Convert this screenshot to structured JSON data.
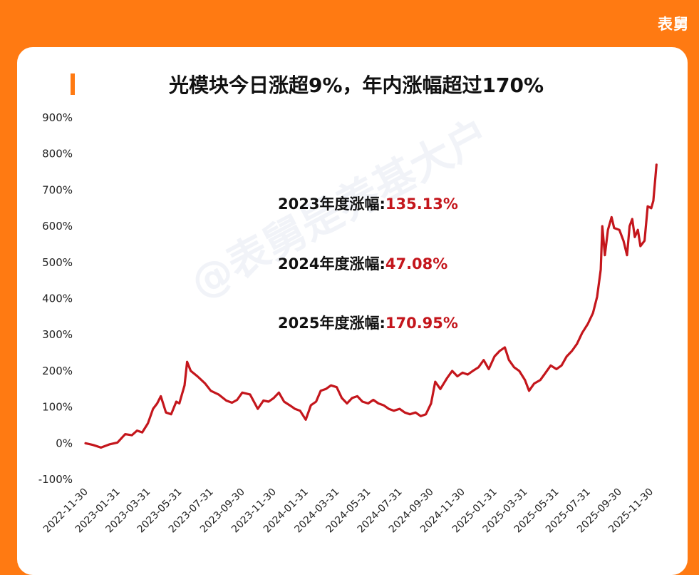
{
  "brand": "表舅",
  "watermark": "@表舅是养基大户",
  "colors": {
    "background": "#ff7a12",
    "line": "#c4161c",
    "value_text": "#c4161c"
  },
  "annotations": [
    {
      "label": "2023年度涨幅:",
      "value": "135.13%"
    },
    {
      "label": "2024年度涨幅:",
      "value": "47.08%"
    },
    {
      "label": "2025年度涨幅:",
      "value": "170.95%"
    }
  ],
  "chart_data": {
    "type": "line",
    "title": "光模块今日涨超9%，年内涨幅超过170%",
    "xlabel": "",
    "ylabel": "",
    "ylim": [
      -100,
      900
    ],
    "yticks": [
      -100,
      0,
      100,
      200,
      300,
      400,
      500,
      600,
      700,
      800,
      900
    ],
    "ytick_labels": [
      "-100%",
      "0%",
      "100%",
      "200%",
      "300%",
      "400%",
      "500%",
      "600%",
      "700%",
      "800%",
      "900%"
    ],
    "xlim": [
      "2022-11-30",
      "2025-12-12"
    ],
    "xticks": [
      "2022-11-30",
      "2023-01-31",
      "2023-03-31",
      "2023-05-31",
      "2023-07-31",
      "2023-09-30",
      "2023-11-30",
      "2024-01-31",
      "2024-03-31",
      "2024-05-31",
      "2024-07-31",
      "2024-09-30",
      "2024-11-30",
      "2025-01-31",
      "2025-03-31",
      "2025-05-31",
      "2025-07-31",
      "2025-09-30",
      "2025-11-30"
    ],
    "grid": false,
    "legend": "none",
    "series": [
      {
        "name": "",
        "values": [
          [
            "2022-11-30",
            0
          ],
          [
            "2022-12-15",
            -5
          ],
          [
            "2022-12-30",
            -12
          ],
          [
            "2023-01-16",
            -3
          ],
          [
            "2023-01-31",
            2
          ],
          [
            "2023-02-15",
            25
          ],
          [
            "2023-02-28",
            22
          ],
          [
            "2023-03-10",
            35
          ],
          [
            "2023-03-20",
            30
          ],
          [
            "2023-03-31",
            55
          ],
          [
            "2023-04-10",
            95
          ],
          [
            "2023-04-18",
            110
          ],
          [
            "2023-04-25",
            130
          ],
          [
            "2023-05-05",
            85
          ],
          [
            "2023-05-15",
            80
          ],
          [
            "2023-05-25",
            115
          ],
          [
            "2023-05-31",
            110
          ],
          [
            "2023-06-10",
            160
          ],
          [
            "2023-06-15",
            225
          ],
          [
            "2023-06-22",
            200
          ],
          [
            "2023-07-05",
            185
          ],
          [
            "2023-07-20",
            165
          ],
          [
            "2023-07-31",
            145
          ],
          [
            "2023-08-15",
            135
          ],
          [
            "2023-08-30",
            118
          ],
          [
            "2023-09-10",
            112
          ],
          [
            "2023-09-20",
            120
          ],
          [
            "2023-09-30",
            140
          ],
          [
            "2023-10-15",
            135
          ],
          [
            "2023-10-30",
            95
          ],
          [
            "2023-11-10",
            118
          ],
          [
            "2023-11-20",
            115
          ],
          [
            "2023-11-30",
            125
          ],
          [
            "2023-12-10",
            140
          ],
          [
            "2023-12-20",
            115
          ],
          [
            "2023-12-31",
            105
          ],
          [
            "2024-01-10",
            95
          ],
          [
            "2024-01-20",
            90
          ],
          [
            "2024-01-31",
            65
          ],
          [
            "2024-02-10",
            105
          ],
          [
            "2024-02-20",
            115
          ],
          [
            "2024-02-29",
            145
          ],
          [
            "2024-03-10",
            150
          ],
          [
            "2024-03-20",
            160
          ],
          [
            "2024-03-31",
            155
          ],
          [
            "2024-04-10",
            125
          ],
          [
            "2024-04-20",
            110
          ],
          [
            "2024-04-30",
            125
          ],
          [
            "2024-05-10",
            130
          ],
          [
            "2024-05-20",
            115
          ],
          [
            "2024-05-31",
            110
          ],
          [
            "2024-06-10",
            120
          ],
          [
            "2024-06-20",
            110
          ],
          [
            "2024-06-30",
            105
          ],
          [
            "2024-07-10",
            95
          ],
          [
            "2024-07-20",
            90
          ],
          [
            "2024-07-31",
            95
          ],
          [
            "2024-08-10",
            85
          ],
          [
            "2024-08-20",
            80
          ],
          [
            "2024-08-31",
            85
          ],
          [
            "2024-09-10",
            75
          ],
          [
            "2024-09-20",
            80
          ],
          [
            "2024-09-30",
            110
          ],
          [
            "2024-10-08",
            170
          ],
          [
            "2024-10-18",
            150
          ],
          [
            "2024-10-31",
            180
          ],
          [
            "2024-11-10",
            200
          ],
          [
            "2024-11-20",
            185
          ],
          [
            "2024-11-30",
            195
          ],
          [
            "2024-12-10",
            190
          ],
          [
            "2024-12-20",
            200
          ],
          [
            "2024-12-31",
            210
          ],
          [
            "2025-01-10",
            230
          ],
          [
            "2025-01-20",
            205
          ],
          [
            "2025-01-31",
            240
          ],
          [
            "2025-02-10",
            255
          ],
          [
            "2025-02-20",
            265
          ],
          [
            "2025-02-28",
            230
          ],
          [
            "2025-03-10",
            210
          ],
          [
            "2025-03-20",
            200
          ],
          [
            "2025-03-31",
            175
          ],
          [
            "2025-04-08",
            145
          ],
          [
            "2025-04-18",
            165
          ],
          [
            "2025-04-30",
            175
          ],
          [
            "2025-05-10",
            195
          ],
          [
            "2025-05-20",
            215
          ],
          [
            "2025-05-31",
            205
          ],
          [
            "2025-06-10",
            215
          ],
          [
            "2025-06-20",
            240
          ],
          [
            "2025-06-30",
            255
          ],
          [
            "2025-07-10",
            275
          ],
          [
            "2025-07-20",
            305
          ],
          [
            "2025-07-31",
            330
          ],
          [
            "2025-08-10",
            360
          ],
          [
            "2025-08-18",
            405
          ],
          [
            "2025-08-25",
            480
          ],
          [
            "2025-08-28",
            600
          ],
          [
            "2025-09-02",
            520
          ],
          [
            "2025-09-08",
            590
          ],
          [
            "2025-09-15",
            625
          ],
          [
            "2025-09-20",
            595
          ],
          [
            "2025-09-30",
            590
          ],
          [
            "2025-10-08",
            560
          ],
          [
            "2025-10-15",
            520
          ],
          [
            "2025-10-20",
            600
          ],
          [
            "2025-10-25",
            620
          ],
          [
            "2025-10-30",
            570
          ],
          [
            "2025-11-05",
            590
          ],
          [
            "2025-11-10",
            545
          ],
          [
            "2025-11-18",
            560
          ],
          [
            "2025-11-24",
            655
          ],
          [
            "2025-12-01",
            650
          ],
          [
            "2025-12-05",
            670
          ],
          [
            "2025-12-09",
            735
          ],
          [
            "2025-12-11",
            770
          ]
        ]
      }
    ]
  }
}
